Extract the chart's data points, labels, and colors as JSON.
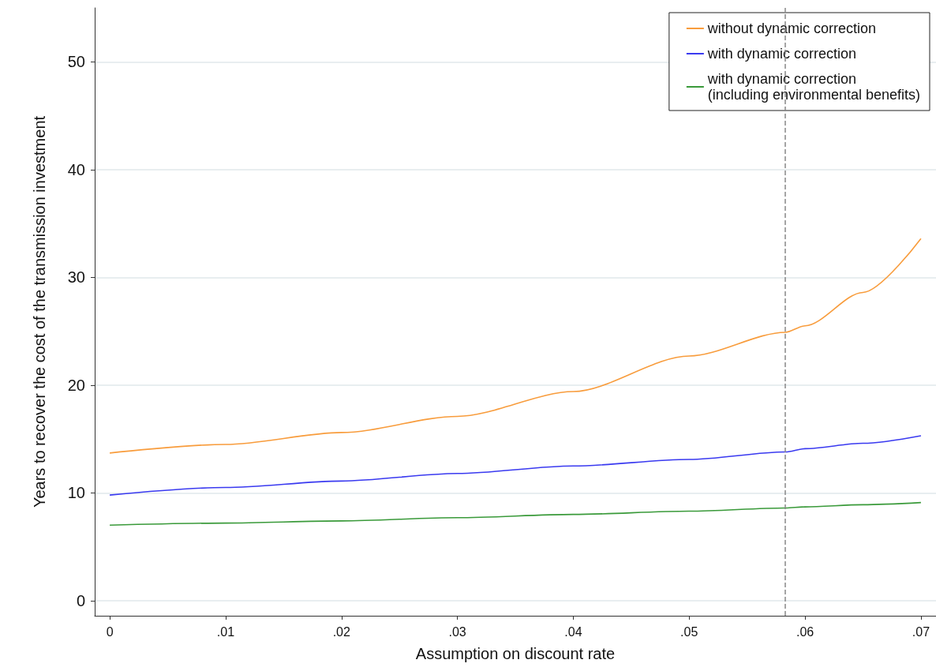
{
  "chart_data": {
    "type": "line",
    "xlabel": "Assumption on discount rate",
    "ylabel": "Years to recover the cost of the transmission investment",
    "xlim": [
      -0.0013,
      0.0713
    ],
    "ylim": [
      -1.4,
      55
    ],
    "xticks": [
      {
        "value": 0,
        "label": "0"
      },
      {
        "value": 0.01,
        "label": ".01"
      },
      {
        "value": 0.02,
        "label": ".02"
      },
      {
        "value": 0.03,
        "label": ".03"
      },
      {
        "value": 0.04,
        "label": ".04"
      },
      {
        "value": 0.05,
        "label": ".05"
      },
      {
        "value": 0.06,
        "label": ".06"
      },
      {
        "value": 0.07,
        "label": ".07"
      }
    ],
    "yticks": [
      0,
      10,
      20,
      30,
      40,
      50
    ],
    "x": [
      0,
      0.01,
      0.02,
      0.03,
      0.04,
      0.05,
      0.0583,
      0.06,
      0.065,
      0.07
    ],
    "series": [
      {
        "name": "without dynamic correction",
        "color": "#f89c3c",
        "values": [
          13.7,
          14.5,
          15.6,
          17.1,
          19.4,
          22.7,
          24.9,
          25.5,
          28.6,
          33.6
        ]
      },
      {
        "name": "with dynamic correction",
        "color": "#3a3af0",
        "values": [
          9.8,
          10.5,
          11.1,
          11.8,
          12.5,
          13.1,
          13.8,
          14.1,
          14.6,
          15.3
        ]
      },
      {
        "name": "with dynamic correction\n(including environmental benefits)",
        "color": "#3a9a3a",
        "values": [
          7.0,
          7.2,
          7.4,
          7.7,
          8.0,
          8.3,
          8.6,
          8.7,
          8.9,
          9.1
        ]
      }
    ],
    "ref_lines": [
      {
        "axis": "x",
        "value": 0.0583,
        "color": "#888888",
        "line_style": "dashed"
      }
    ],
    "grid": "y",
    "legend": "top right",
    "marker": "none",
    "line_style": "solid"
  }
}
